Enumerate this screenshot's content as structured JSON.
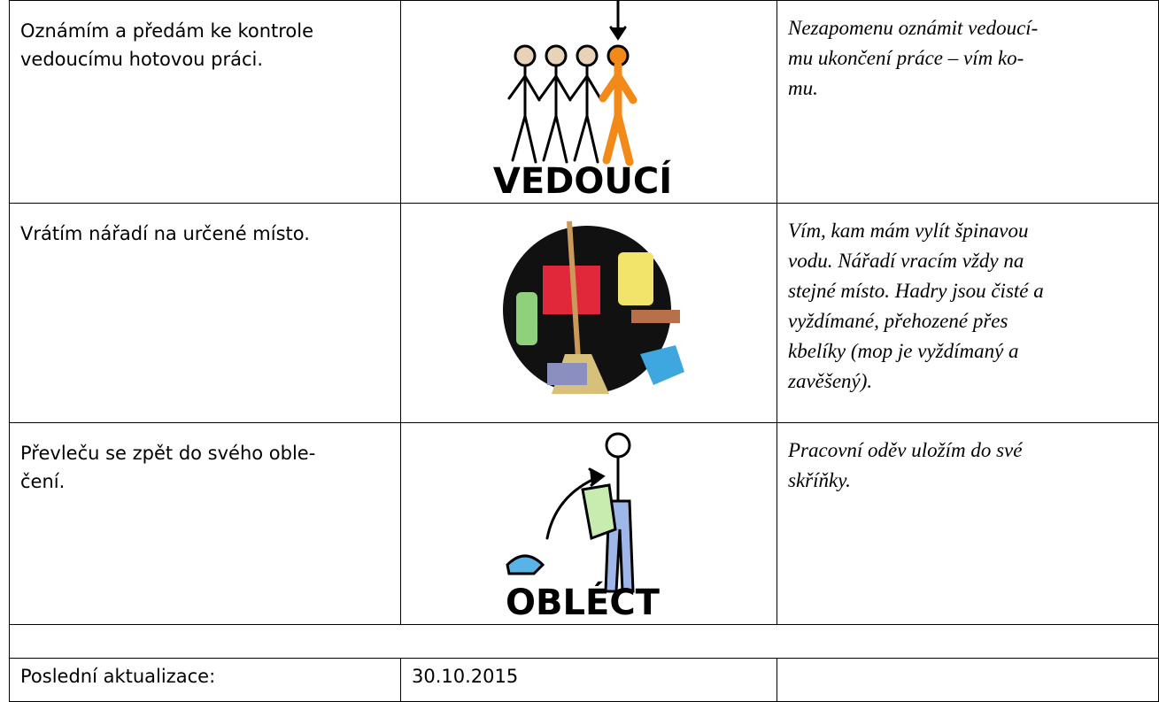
{
  "table": {
    "rows": [
      {
        "task": [
          "Oznámím a předám ke kontrole",
          "vedoucímu hotovou práci."
        ],
        "pictogram_label": "VEDOUCÍ",
        "note": [
          "Nezapomenu oznámit vedoucí-",
          "mu ukončení práce – vím ko-",
          "mu."
        ]
      },
      {
        "task": [
          "Vrátím nářadí na určené místo."
        ],
        "note": [
          "Vím, kam mám vylít špinavou",
          "vodu. Nářadí vracím vždy na",
          "stejné místo. Hadry jsou čisté a",
          "vyždímané, přehozené přes",
          "kbelíky (mop je vyždímaný a",
          "zavěšený)."
        ]
      },
      {
        "task": [
          "Převleču se zpět do svého oble-",
          "čení."
        ],
        "pictogram_label": "OBLÉCT",
        "note": [
          "Pracovní oděv uložím do své",
          "skříňky."
        ]
      }
    ],
    "footer": {
      "label": "Poslední aktualizace:",
      "date": "30.10.2015"
    }
  }
}
